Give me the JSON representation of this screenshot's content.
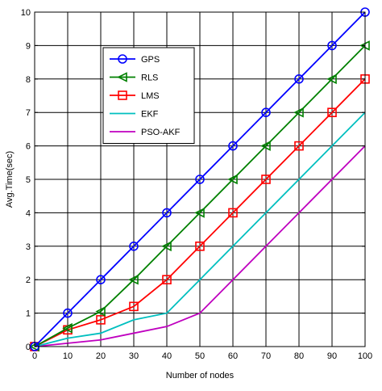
{
  "chart_data": {
    "type": "line",
    "title": "",
    "xlabel": "Number of nodes",
    "ylabel": "Avg.Time(sec)",
    "xlim": [
      0,
      100
    ],
    "ylim": [
      0,
      10
    ],
    "x_ticks": [
      0,
      10,
      20,
      30,
      40,
      50,
      60,
      70,
      80,
      90,
      100
    ],
    "y_ticks": [
      0,
      1,
      2,
      3,
      4,
      5,
      6,
      7,
      8,
      9,
      10
    ],
    "grid": true,
    "legend_position": "top-left",
    "x": [
      0,
      10,
      20,
      30,
      40,
      50,
      60,
      70,
      80,
      90,
      100
    ],
    "series": [
      {
        "name": "GPS",
        "color": "#0000ff",
        "marker": "circle",
        "values": [
          0,
          1,
          2,
          3,
          4,
          5,
          6,
          7,
          8,
          9,
          10
        ]
      },
      {
        "name": "RLS",
        "color": "#008000",
        "marker": "triangle-left",
        "values": [
          0,
          0.55,
          1.05,
          2,
          3,
          4,
          5,
          6,
          7,
          8,
          9
        ]
      },
      {
        "name": "LMS",
        "color": "#ff0000",
        "marker": "square",
        "values": [
          0,
          0.5,
          0.8,
          1.2,
          2,
          3,
          4,
          5,
          6,
          7,
          8
        ]
      },
      {
        "name": "EKF",
        "color": "#00bfbf",
        "marker": "none",
        "values": [
          0,
          0.25,
          0.4,
          0.8,
          1,
          2,
          3,
          4,
          5,
          6,
          7
        ]
      },
      {
        "name": "PSO-AKF",
        "color": "#bf00bf",
        "marker": "none",
        "values": [
          0,
          0.1,
          0.2,
          0.4,
          0.6,
          1,
          2,
          3,
          4,
          5,
          6
        ]
      }
    ]
  }
}
